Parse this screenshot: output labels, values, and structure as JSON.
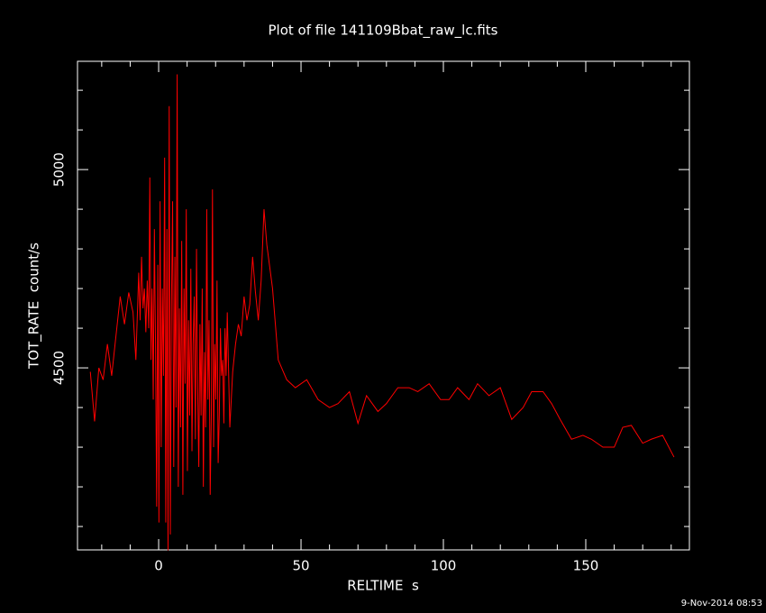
{
  "chart_data": {
    "type": "line",
    "title": "Plot of file 141109Bbat_raw_lc.fits",
    "x_label": "RELTIME  s",
    "y_label": "TOT_RATE  count/s",
    "footer": "9-Nov-2014 08:53",
    "x": [
      -24,
      -22.5,
      -21,
      -19.5,
      -18,
      -16.5,
      -15,
      -13.5,
      -12,
      -10.5,
      -9,
      -8,
      -7,
      -6.5,
      -6,
      -5.5,
      -5,
      -4.5,
      -4,
      -3.5,
      -3.1,
      -2.7,
      -2.3,
      -1.9,
      -1.5,
      -1.1,
      -0.7,
      -0.3,
      0.1,
      0.5,
      0.9,
      1.3,
      1.7,
      2.1,
      2.5,
      2.9,
      3.3,
      3.7,
      4.1,
      4.5,
      4.9,
      5.3,
      5.7,
      6.1,
      6.5,
      6.9,
      7.3,
      7.7,
      8.1,
      8.5,
      8.9,
      9.3,
      9.7,
      10.1,
      10.5,
      10.9,
      11.3,
      11.7,
      12.1,
      12.5,
      12.9,
      13.3,
      13.7,
      14.1,
      14.5,
      14.9,
      15.3,
      15.7,
      16.1,
      16.5,
      16.9,
      17.3,
      17.7,
      18.1,
      18.5,
      18.9,
      19.3,
      19.7,
      20.1,
      20.5,
      20.9,
      21.3,
      21.7,
      22.1,
      22.5,
      22.9,
      23.3,
      23.7,
      24.1,
      25,
      26,
      27,
      28,
      29,
      30,
      31,
      32,
      33,
      34,
      35,
      36,
      37,
      38,
      40,
      42,
      45,
      48,
      52,
      56,
      60,
      63,
      67,
      70,
      73,
      77,
      80,
      84,
      88,
      91,
      95,
      99,
      102,
      105,
      109,
      112,
      116,
      120,
      124,
      128,
      131,
      135,
      138,
      141,
      145,
      149,
      152,
      156,
      160,
      163,
      166,
      170,
      173,
      177,
      181
    ],
    "series": [
      {
        "name": "TOT_RATE",
        "color": "#ff0000",
        "values": [
          4490,
          4365,
          4500,
          4470,
          4560,
          4480,
          4580,
          4680,
          4610,
          4690,
          4640,
          4520,
          4740,
          4620,
          4780,
          4650,
          4700,
          4590,
          4720,
          4600,
          4980,
          4520,
          4700,
          4420,
          4850,
          4560,
          4150,
          4760,
          4110,
          4920,
          4300,
          4700,
          4480,
          5030,
          4110,
          4850,
          4040,
          5160,
          4080,
          4660,
          4920,
          4250,
          4780,
          4400,
          5240,
          4200,
          4650,
          4350,
          4820,
          4180,
          4700,
          4460,
          4900,
          4240,
          4620,
          4380,
          4750,
          4290,
          4560,
          4680,
          4320,
          4800,
          4450,
          4250,
          4610,
          4380,
          4700,
          4200,
          4540,
          4350,
          4900,
          4420,
          4620,
          4180,
          4380,
          4950,
          4300,
          4560,
          4420,
          4720,
          4260,
          4380,
          4600,
          4480,
          4520,
          4360,
          4600,
          4480,
          4640,
          4350,
          4490,
          4560,
          4610,
          4580,
          4680,
          4620,
          4660,
          4780,
          4690,
          4620,
          4720,
          4900,
          4810,
          4700,
          4520,
          4470,
          4450,
          4470,
          4420,
          4400,
          4410,
          4440,
          4360,
          4430,
          4390,
          4410,
          4450,
          4450,
          4440,
          4460,
          4420,
          4420,
          4450,
          4420,
          4460,
          4430,
          4450,
          4370,
          4400,
          4440,
          4440,
          4410,
          4370,
          4320,
          4330,
          4320,
          4300,
          4300,
          4350,
          4355,
          4310,
          4320,
          4330,
          4275
        ]
      }
    ],
    "xlim": [
      -28.5,
      186.4
    ],
    "ylim": [
      4041,
      5273
    ],
    "xticks": [
      0,
      50,
      100,
      150
    ],
    "yticks": [
      4500,
      5000
    ],
    "xminor": [
      -20,
      -10,
      10,
      20,
      30,
      40,
      60,
      70,
      80,
      90,
      110,
      120,
      130,
      140,
      160,
      170,
      180
    ],
    "yminor": [
      4100,
      4200,
      4300,
      4400,
      4600,
      4700,
      4800,
      4900,
      5100,
      5200
    ],
    "background": "#000000",
    "axis_color": "#ffffff"
  }
}
